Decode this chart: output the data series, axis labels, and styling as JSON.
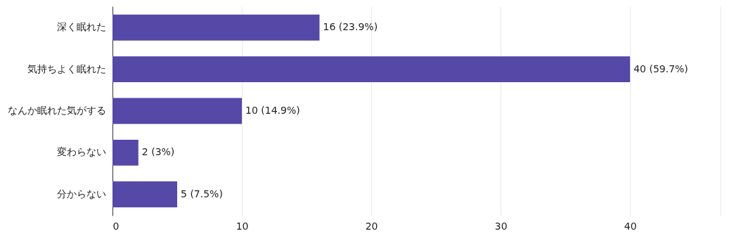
{
  "chart_data": {
    "type": "bar",
    "orientation": "horizontal",
    "categories": [
      "深く眠れた",
      "気持ちよく眠れた",
      "なんか眠れた気がする",
      "変わらない",
      "分からない"
    ],
    "values": [
      16,
      40,
      10,
      2,
      5
    ],
    "value_labels": [
      "16 (23.9%)",
      "40 (59.7%)",
      "10 (14.9%)",
      "2 (3%)",
      "5 (7.5%)"
    ],
    "color": "#5548a6",
    "xlim": [
      0,
      47
    ],
    "xticks": [
      0,
      10,
      20,
      30,
      40
    ],
    "grid": "x"
  }
}
